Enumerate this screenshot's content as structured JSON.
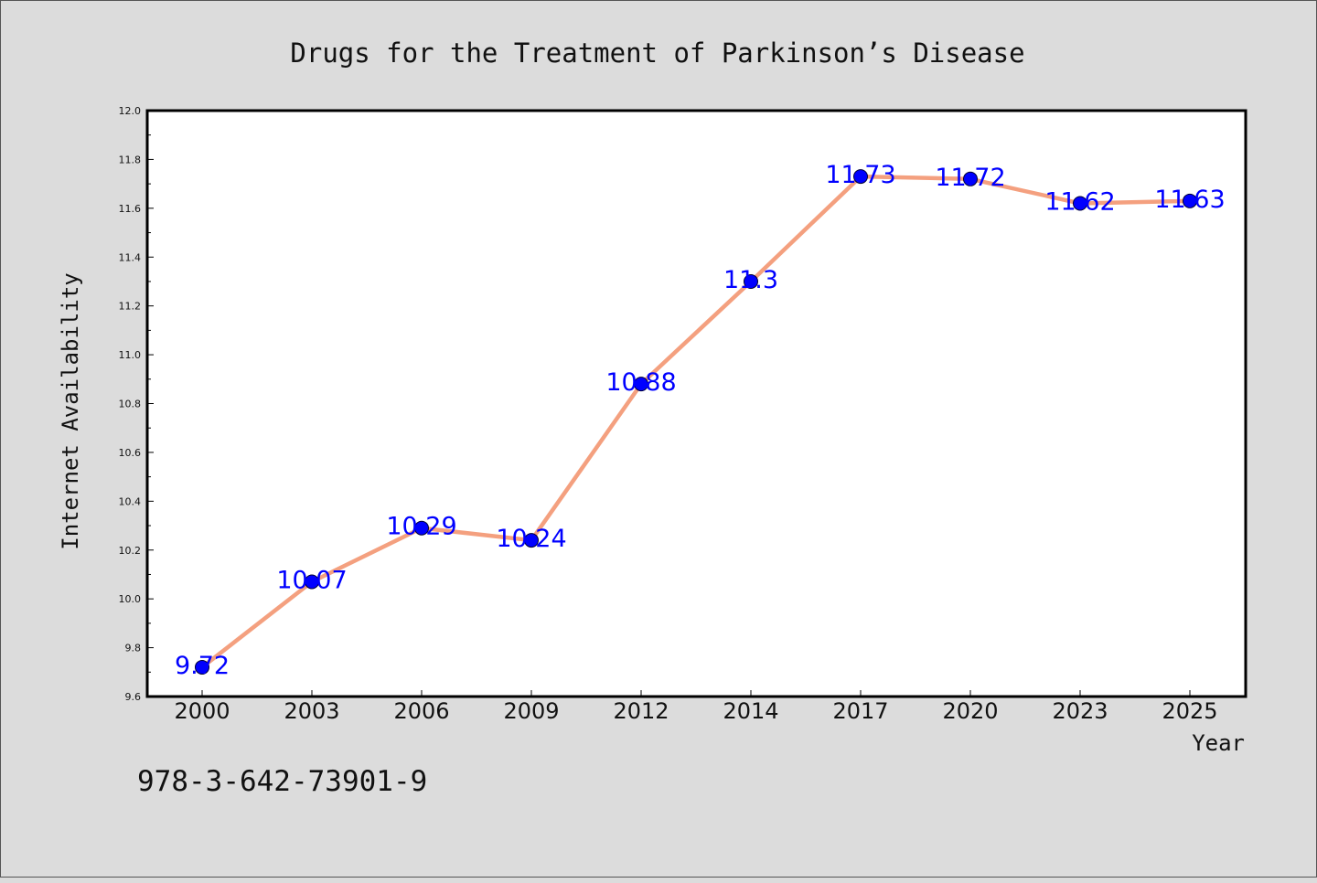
{
  "chart_data": {
    "type": "line",
    "title": "Drugs for the Treatment of Parkinson’s Disease",
    "xlabel": "Year",
    "ylabel": "Internet Availability",
    "categories": [
      "2000",
      "2003",
      "2006",
      "2009",
      "2012",
      "2014",
      "2017",
      "2020",
      "2023",
      "2025"
    ],
    "series": [
      {
        "values": [
          9.72,
          10.07,
          10.29,
          10.24,
          10.88,
          11.3,
          11.73,
          11.72,
          11.62,
          11.63
        ],
        "data_labels": [
          "9.72",
          "10.07",
          "10.29",
          "10.24",
          "10.88",
          "11.3",
          "11.73",
          "11.72",
          "11.62",
          "11.63"
        ]
      }
    ],
    "ylim": [
      9.6,
      12.0
    ],
    "yticks": [
      "9.6",
      "9.8",
      "10.0",
      "10.2",
      "10.4",
      "10.6",
      "10.8",
      "11.0",
      "11.2",
      "11.4",
      "11.6",
      "11.8",
      "12.0"
    ],
    "grid": false,
    "legend": "none",
    "colors": {
      "line": "#f4a07f",
      "marker": "#0000ff",
      "data_label": "#0000ff",
      "background": "#dcdcdc",
      "plot_background": "#ffffff"
    }
  },
  "footer": {
    "code": "978-3-642-73901-9"
  }
}
